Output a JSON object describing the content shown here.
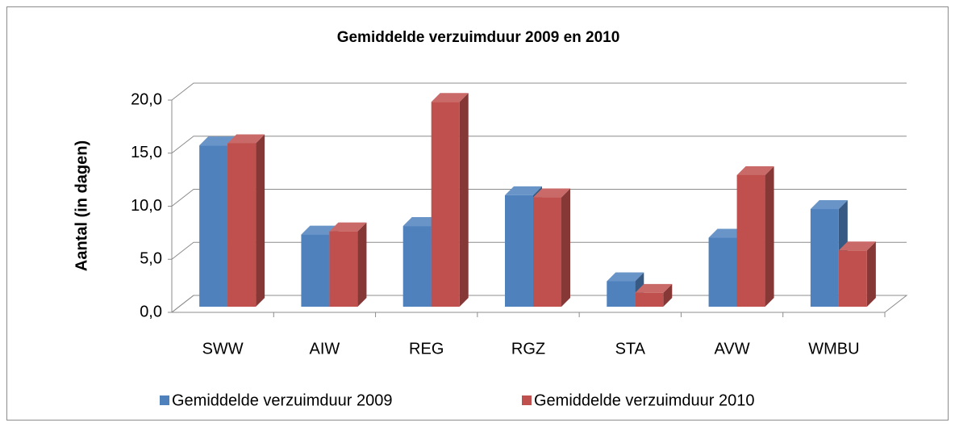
{
  "chart_data": {
    "type": "bar3d",
    "title": "Gemiddelde verzuimduur 2009 en 2010",
    "y_label": "Aantal (in dagen)",
    "categories": [
      "SWW",
      "AIW",
      "REG",
      "RGZ",
      "STA",
      "AVW",
      "WMBU"
    ],
    "series": [
      {
        "name": "Gemiddelde verzuimduur 2009",
        "color": "#4f81bd",
        "values": [
          15.2,
          6.8,
          7.6,
          10.5,
          2.4,
          6.5,
          9.2
        ]
      },
      {
        "name": "Gemiddelde verzuimduur 2010",
        "color": "#c0504d",
        "values": [
          15.4,
          7.1,
          19.3,
          10.3,
          1.3,
          12.4,
          5.3
        ]
      }
    ],
    "ylim": [
      0,
      20
    ],
    "yticks": [
      {
        "value": 0,
        "label": "0,0"
      },
      {
        "value": 5,
        "label": "5,0"
      },
      {
        "value": 10,
        "label": "10,0"
      },
      {
        "value": 15,
        "label": "15,0"
      },
      {
        "value": 20,
        "label": "20,0"
      }
    ],
    "grid": true,
    "legend": "bottom"
  }
}
